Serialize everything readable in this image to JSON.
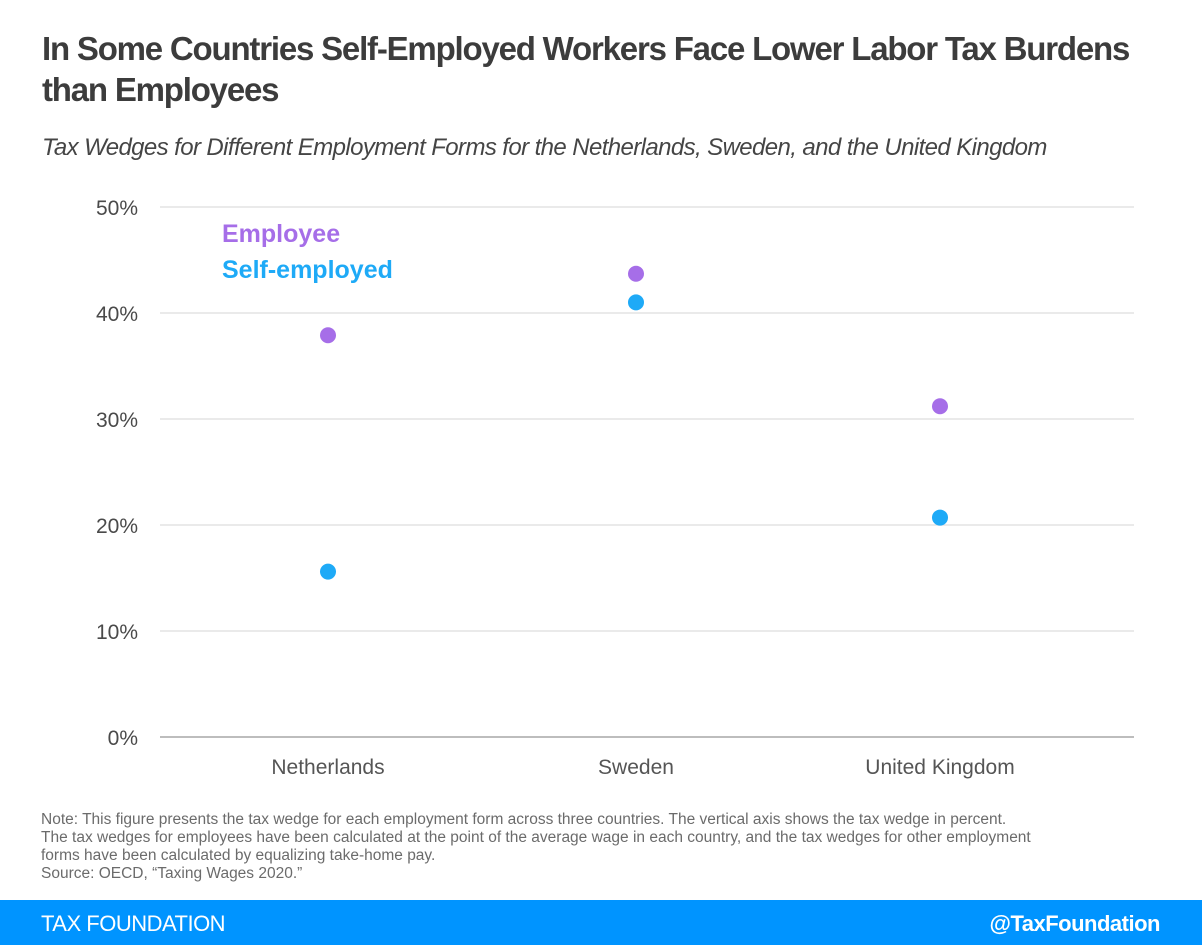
{
  "header": {
    "title": "In Some Countries Self-Employed Workers Face Lower Labor Tax Burdens than Employees",
    "subtitle": "Tax Wedges for Different Employment Forms for the Netherlands, Sweden, and the United Kingdom"
  },
  "chart_data": {
    "type": "scatter",
    "title": "In Some Countries Self-Employed Workers Face Lower Labor Tax Burdens than Employees",
    "subtitle": "Tax Wedges for Different Employment Forms for the Netherlands, Sweden, and the United Kingdom",
    "xlabel": "",
    "ylabel": "",
    "categories": [
      "Netherlands",
      "Sweden",
      "United Kingdom"
    ],
    "ylim": [
      0,
      50
    ],
    "yticks": [
      0,
      10,
      20,
      30,
      40,
      50
    ],
    "ytick_labels": [
      "0%",
      "10%",
      "20%",
      "30%",
      "40%",
      "50%"
    ],
    "grid": true,
    "legend_position": "top-left",
    "series": [
      {
        "name": "Employee",
        "color": "#a66ee8",
        "values": [
          37.9,
          43.7,
          31.2
        ]
      },
      {
        "name": "Self-employed",
        "color": "#1eaaf7",
        "values": [
          15.6,
          41.0,
          20.7
        ]
      }
    ]
  },
  "note": {
    "lines": [
      "Note: This figure presents the tax wedge for each employment form across three countries. The vertical axis shows the tax wedge in percent.",
      "The tax wedges for employees have been calculated at the point of the average wage in each country, and the tax wedges for other employment",
      "forms have been calculated by equalizing take-home pay.",
      "Source: OECD, “Taxing Wages 2020.”"
    ]
  },
  "footer": {
    "brand": "TAX FOUNDATION",
    "handle": "@TaxFoundation",
    "color": "#0094ff"
  }
}
